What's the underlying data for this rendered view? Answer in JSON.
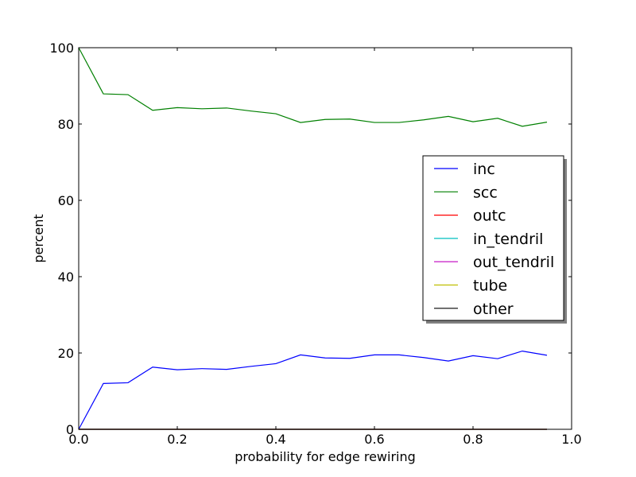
{
  "chart_data": {
    "type": "line",
    "title": "",
    "xlabel": "probability for edge rewiring",
    "ylabel": "percent",
    "xlim": [
      0.0,
      1.0
    ],
    "ylim": [
      0,
      100
    ],
    "grid": false,
    "legend_position": "center-right",
    "x": [
      0.0,
      0.05,
      0.1,
      0.15,
      0.2,
      0.25,
      0.3,
      0.35,
      0.4,
      0.45,
      0.5,
      0.55,
      0.6,
      0.65,
      0.7,
      0.75,
      0.8,
      0.85,
      0.9,
      0.95
    ],
    "series": [
      {
        "name": "inc",
        "color": "#0000ff",
        "values": [
          0,
          12.0,
          12.2,
          16.3,
          15.6,
          15.9,
          15.7,
          16.5,
          17.2,
          19.5,
          18.7,
          18.6,
          19.5,
          19.5,
          18.8,
          17.9,
          19.3,
          18.5,
          20.5,
          19.4
        ]
      },
      {
        "name": "scc",
        "color": "#008000",
        "values": [
          100,
          87.9,
          87.7,
          83.6,
          84.3,
          84.0,
          84.2,
          83.4,
          82.7,
          80.4,
          81.2,
          81.3,
          80.4,
          80.4,
          81.1,
          82.0,
          80.6,
          81.5,
          79.4,
          80.5
        ]
      },
      {
        "name": "outc",
        "color": "#ff0000",
        "values": [
          0,
          0,
          0,
          0,
          0,
          0,
          0,
          0,
          0,
          0,
          0,
          0,
          0,
          0,
          0,
          0,
          0,
          0,
          0,
          0
        ]
      },
      {
        "name": "in_tendril",
        "color": "#00bfbf",
        "values": [
          0,
          0,
          0,
          0,
          0,
          0,
          0,
          0,
          0,
          0,
          0,
          0,
          0,
          0,
          0,
          0,
          0,
          0,
          0,
          0
        ]
      },
      {
        "name": "out_tendril",
        "color": "#bf00bf",
        "values": [
          0,
          0,
          0,
          0,
          0,
          0,
          0,
          0,
          0,
          0,
          0,
          0,
          0,
          0,
          0,
          0,
          0,
          0,
          0,
          0
        ]
      },
      {
        "name": "tube",
        "color": "#bfbf00",
        "values": [
          0,
          0,
          0,
          0,
          0,
          0,
          0,
          0,
          0,
          0,
          0,
          0,
          0,
          0,
          0,
          0,
          0,
          0,
          0,
          0
        ]
      },
      {
        "name": "other",
        "color": "#000000",
        "values": [
          0,
          0,
          0,
          0,
          0,
          0,
          0,
          0,
          0,
          0,
          0,
          0,
          0,
          0,
          0,
          0,
          0,
          0,
          0,
          0
        ]
      }
    ],
    "xticks": [
      "0.0",
      "0.2",
      "0.4",
      "0.6",
      "0.8",
      "1.0"
    ],
    "yticks": [
      "0",
      "20",
      "40",
      "60",
      "80",
      "100"
    ]
  }
}
